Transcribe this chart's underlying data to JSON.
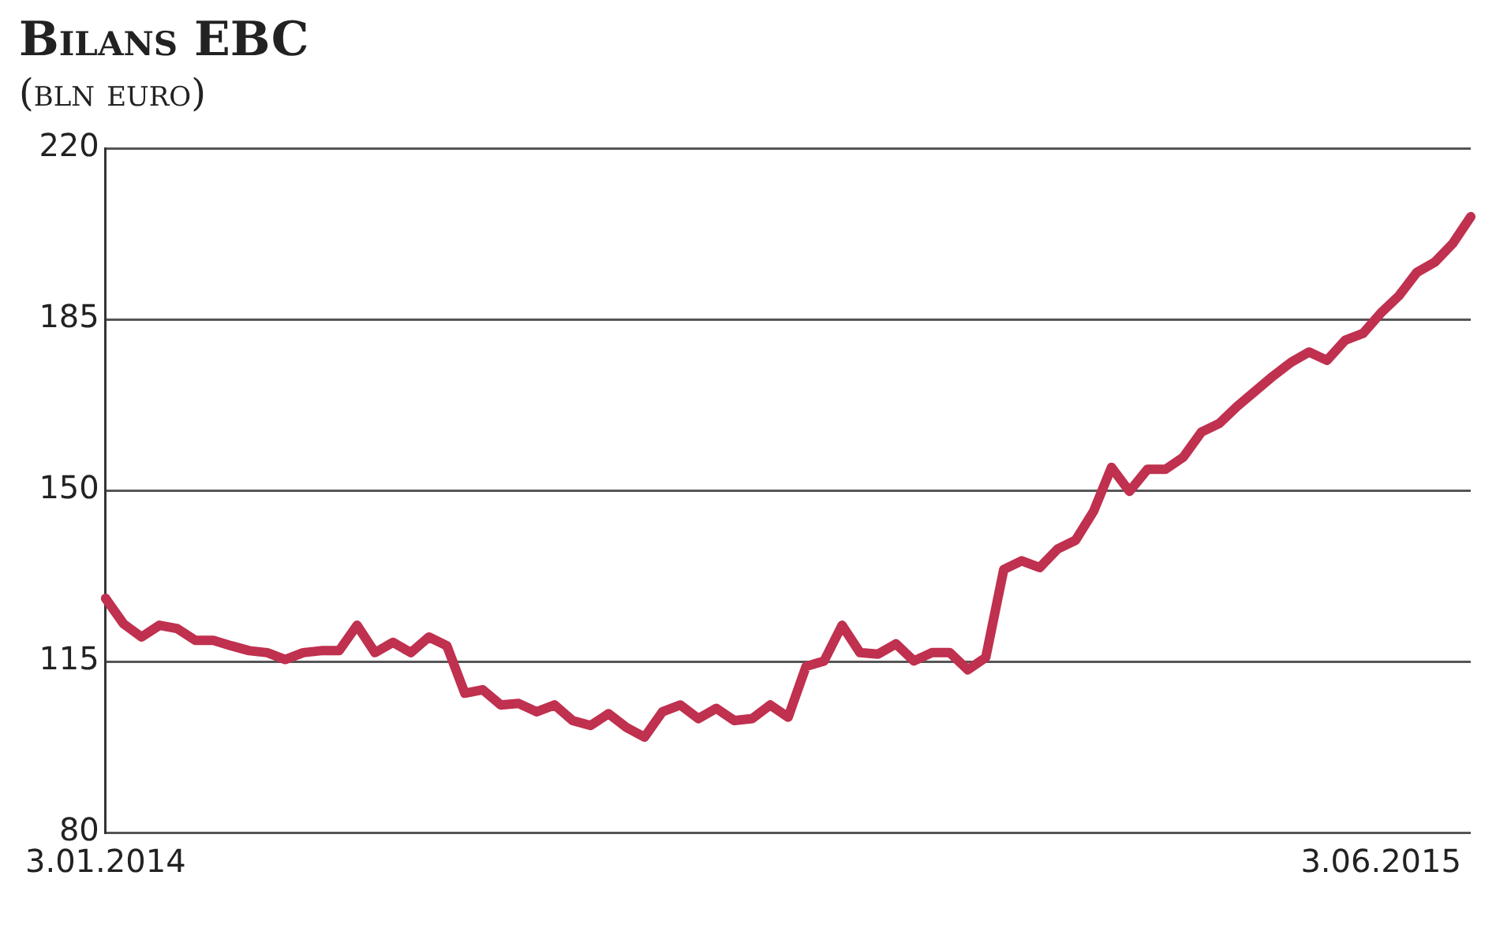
{
  "chart_data": {
    "type": "line",
    "title": "Bilans EBC",
    "subtitle": "(bln euro)",
    "categories": [
      "3.01.2014",
      null,
      null,
      null,
      null,
      null,
      null,
      null,
      null,
      null,
      null,
      null,
      null,
      null,
      null,
      null,
      null,
      null,
      null,
      null,
      null,
      null,
      null,
      null,
      null,
      null,
      null,
      null,
      null,
      null,
      null,
      null,
      null,
      null,
      null,
      null,
      null,
      null,
      null,
      null,
      null,
      null,
      null,
      null,
      null,
      null,
      null,
      null,
      null,
      null,
      null,
      null,
      null,
      null,
      null,
      null,
      null,
      null,
      null,
      null,
      null,
      null,
      null,
      null,
      null,
      null,
      null,
      null,
      null,
      null,
      null,
      "3.06.2015",
      null,
      null,
      null,
      null,
      null
    ],
    "series": [
      {
        "color": "#c0304f",
        "values": [
          127.9,
          122.7,
          120,
          122.4,
          121.7,
          119.3,
          119.3,
          118.2,
          117.2,
          116.8,
          115.4,
          116.8,
          117.2,
          117.2,
          122.4,
          116.8,
          118.9,
          116.8,
          120,
          118.2,
          108.5,
          109.2,
          106.1,
          106.4,
          104.7,
          106.1,
          102.9,
          101.9,
          104.3,
          101.5,
          99.5,
          104.7,
          106.1,
          103.3,
          105.4,
          102.9,
          103.3,
          106.1,
          103.6,
          114,
          115.1,
          122.4,
          116.8,
          116.5,
          118.6,
          115.1,
          116.8,
          116.8,
          113.3,
          115.8,
          133.8,
          135.6,
          134.2,
          138,
          139.8,
          145.7,
          154.7,
          149.8,
          154.3,
          154.3,
          156.8,
          161.9,
          163.7,
          167.2,
          170.3,
          173.4,
          176.2,
          178.3,
          176.6,
          180.7,
          182.1,
          186.3,
          189.8,
          194.6,
          196.7,
          200.5,
          206
        ]
      }
    ],
    "ylim": [
      80,
      220
    ],
    "yticks": [
      80,
      115,
      150,
      185,
      220
    ],
    "grid": "y",
    "legend": false,
    "marker": "none",
    "line_style": "solid"
  }
}
